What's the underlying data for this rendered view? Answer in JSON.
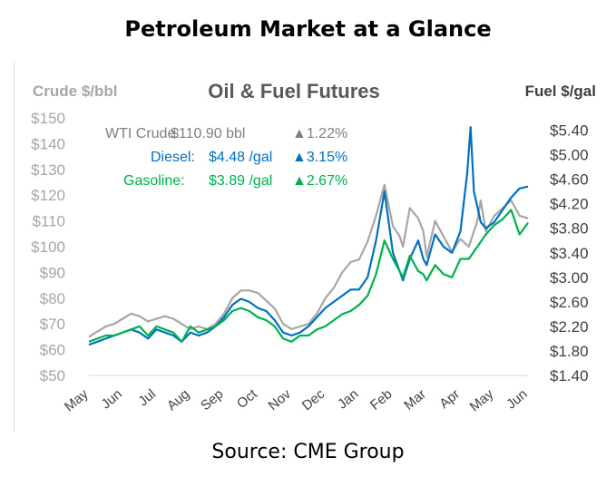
{
  "page_title": "Petroleum Market at a Glance",
  "source": "Source: CME Group",
  "chart_data": {
    "type": "line",
    "title": "Oil & Fuel Futures",
    "y_left_label": "Crude $/bbl",
    "y_right_label": "Fuel $/gal",
    "y_left_ticks": [
      "$50",
      "$60",
      "$70",
      "$80",
      "$90",
      "$100",
      "$110",
      "$120",
      "$130",
      "$140",
      "$150"
    ],
    "y_left_range": [
      50,
      150
    ],
    "y_right_ticks": [
      "$1.40",
      "$1.80",
      "$2.20",
      "$2.60",
      "$3.00",
      "$3.40",
      "$3.80",
      "$4.20",
      "$4.60",
      "$5.00",
      "$5.40"
    ],
    "y_right_range": [
      1.4,
      5.6
    ],
    "x_labels": [
      "May",
      "Jun",
      "Jul",
      "Aug",
      "Sep",
      "Oct",
      "Nov",
      "Dec",
      "Jan",
      "Feb",
      "Mar",
      "Apr",
      "May",
      "Jun"
    ],
    "legend": [
      {
        "label": "WTI Crude:",
        "value": "$110.90 bbl",
        "change": "▲1.22%",
        "color": "#a6a6a6",
        "change_color_arrow": "#7f7f7f"
      },
      {
        "label": "Diesel:",
        "value": "$4.48 /gal",
        "change": "▲3.15%",
        "color": "#0070c0",
        "change_color_arrow": "#0070c0"
      },
      {
        "label": "Gasoline:",
        "value": "$3.89 /gal",
        "change": "▲2.67%",
        "color": "#00b050",
        "change_color_arrow": "#00b050"
      }
    ],
    "series": [
      {
        "name": "WTI Crude",
        "axis": "left",
        "color": "#a6a6a6",
        "x": [
          0,
          0.25,
          0.5,
          0.75,
          1,
          1.25,
          1.5,
          1.75,
          2,
          2.25,
          2.5,
          2.75,
          3,
          3.25,
          3.5,
          3.75,
          4,
          4.25,
          4.5,
          4.75,
          5,
          5.25,
          5.5,
          5.75,
          6,
          6.25,
          6.5,
          6.75,
          7,
          7.25,
          7.5,
          7.75,
          8,
          8.25,
          8.5,
          8.75,
          9,
          9.2,
          9.3,
          9.5,
          9.75,
          9.9,
          10,
          10.25,
          10.5,
          10.75,
          11,
          11.25,
          11.5,
          11.6,
          11.75,
          12,
          12.25,
          12.5,
          12.75,
          13
        ],
        "y": [
          65,
          67,
          69,
          70,
          72,
          74,
          73,
          71,
          72,
          73,
          72,
          70,
          68,
          69,
          68,
          70,
          74,
          80,
          83,
          83,
          82,
          79,
          76,
          70,
          68,
          69,
          70,
          74,
          80,
          84,
          90,
          94,
          95,
          102,
          112,
          124,
          108,
          104,
          100,
          115,
          111,
          106,
          96,
          110,
          104,
          98,
          103,
          100,
          110,
          118,
          106,
          112,
          115,
          118,
          112,
          111
        ]
      },
      {
        "name": "Diesel",
        "axis": "right",
        "color": "#0070c0",
        "x": [
          0,
          0.25,
          0.5,
          0.75,
          1,
          1.25,
          1.5,
          1.75,
          2,
          2.25,
          2.5,
          2.75,
          3,
          3.25,
          3.5,
          3.75,
          4,
          4.25,
          4.5,
          4.75,
          5,
          5.25,
          5.5,
          5.75,
          6,
          6.25,
          6.5,
          6.75,
          7,
          7.25,
          7.5,
          7.75,
          8,
          8.25,
          8.5,
          8.75,
          9,
          9.2,
          9.3,
          9.5,
          9.75,
          9.9,
          10,
          10.25,
          10.5,
          10.75,
          11,
          11.2,
          11.3,
          11.4,
          11.6,
          11.75,
          12,
          12.25,
          12.5,
          12.75,
          13
        ],
        "y": [
          1.9,
          1.95,
          2.0,
          2.05,
          2.1,
          2.15,
          2.1,
          2.0,
          2.15,
          2.1,
          2.05,
          1.95,
          2.1,
          2.05,
          2.1,
          2.2,
          2.35,
          2.55,
          2.65,
          2.6,
          2.5,
          2.45,
          2.3,
          2.1,
          2.05,
          2.1,
          2.2,
          2.35,
          2.5,
          2.6,
          2.7,
          2.8,
          2.8,
          3.0,
          3.6,
          4.4,
          3.4,
          3.1,
          2.95,
          3.3,
          3.6,
          3.3,
          3.2,
          3.7,
          3.5,
          3.4,
          3.75,
          4.7,
          5.45,
          4.4,
          3.9,
          3.8,
          3.9,
          4.1,
          4.3,
          4.45,
          4.48
        ]
      },
      {
        "name": "Gasoline",
        "axis": "right",
        "color": "#00b050",
        "x": [
          0,
          0.25,
          0.5,
          0.75,
          1,
          1.25,
          1.5,
          1.75,
          2,
          2.25,
          2.5,
          2.75,
          3,
          3.25,
          3.5,
          3.75,
          4,
          4.25,
          4.5,
          4.75,
          5,
          5.25,
          5.5,
          5.75,
          6,
          6.25,
          6.5,
          6.75,
          7,
          7.25,
          7.5,
          7.75,
          8,
          8.25,
          8.5,
          8.75,
          9,
          9.2,
          9.3,
          9.5,
          9.75,
          9.9,
          10,
          10.25,
          10.5,
          10.75,
          11,
          11.25,
          11.5,
          11.75,
          12,
          12.25,
          12.5,
          12.75,
          13
        ],
        "y": [
          1.95,
          2.0,
          2.05,
          2.05,
          2.1,
          2.15,
          2.2,
          2.05,
          2.2,
          2.15,
          2.1,
          1.95,
          2.2,
          2.1,
          2.15,
          2.2,
          2.3,
          2.45,
          2.5,
          2.45,
          2.35,
          2.3,
          2.2,
          2.0,
          1.95,
          2.05,
          2.05,
          2.15,
          2.2,
          2.3,
          2.4,
          2.45,
          2.55,
          2.7,
          3.05,
          3.6,
          3.3,
          3.1,
          3.0,
          3.35,
          3.1,
          3.05,
          2.95,
          3.2,
          3.05,
          3.0,
          3.3,
          3.3,
          3.5,
          3.7,
          3.85,
          3.95,
          4.1,
          3.7,
          3.89
        ]
      }
    ]
  }
}
